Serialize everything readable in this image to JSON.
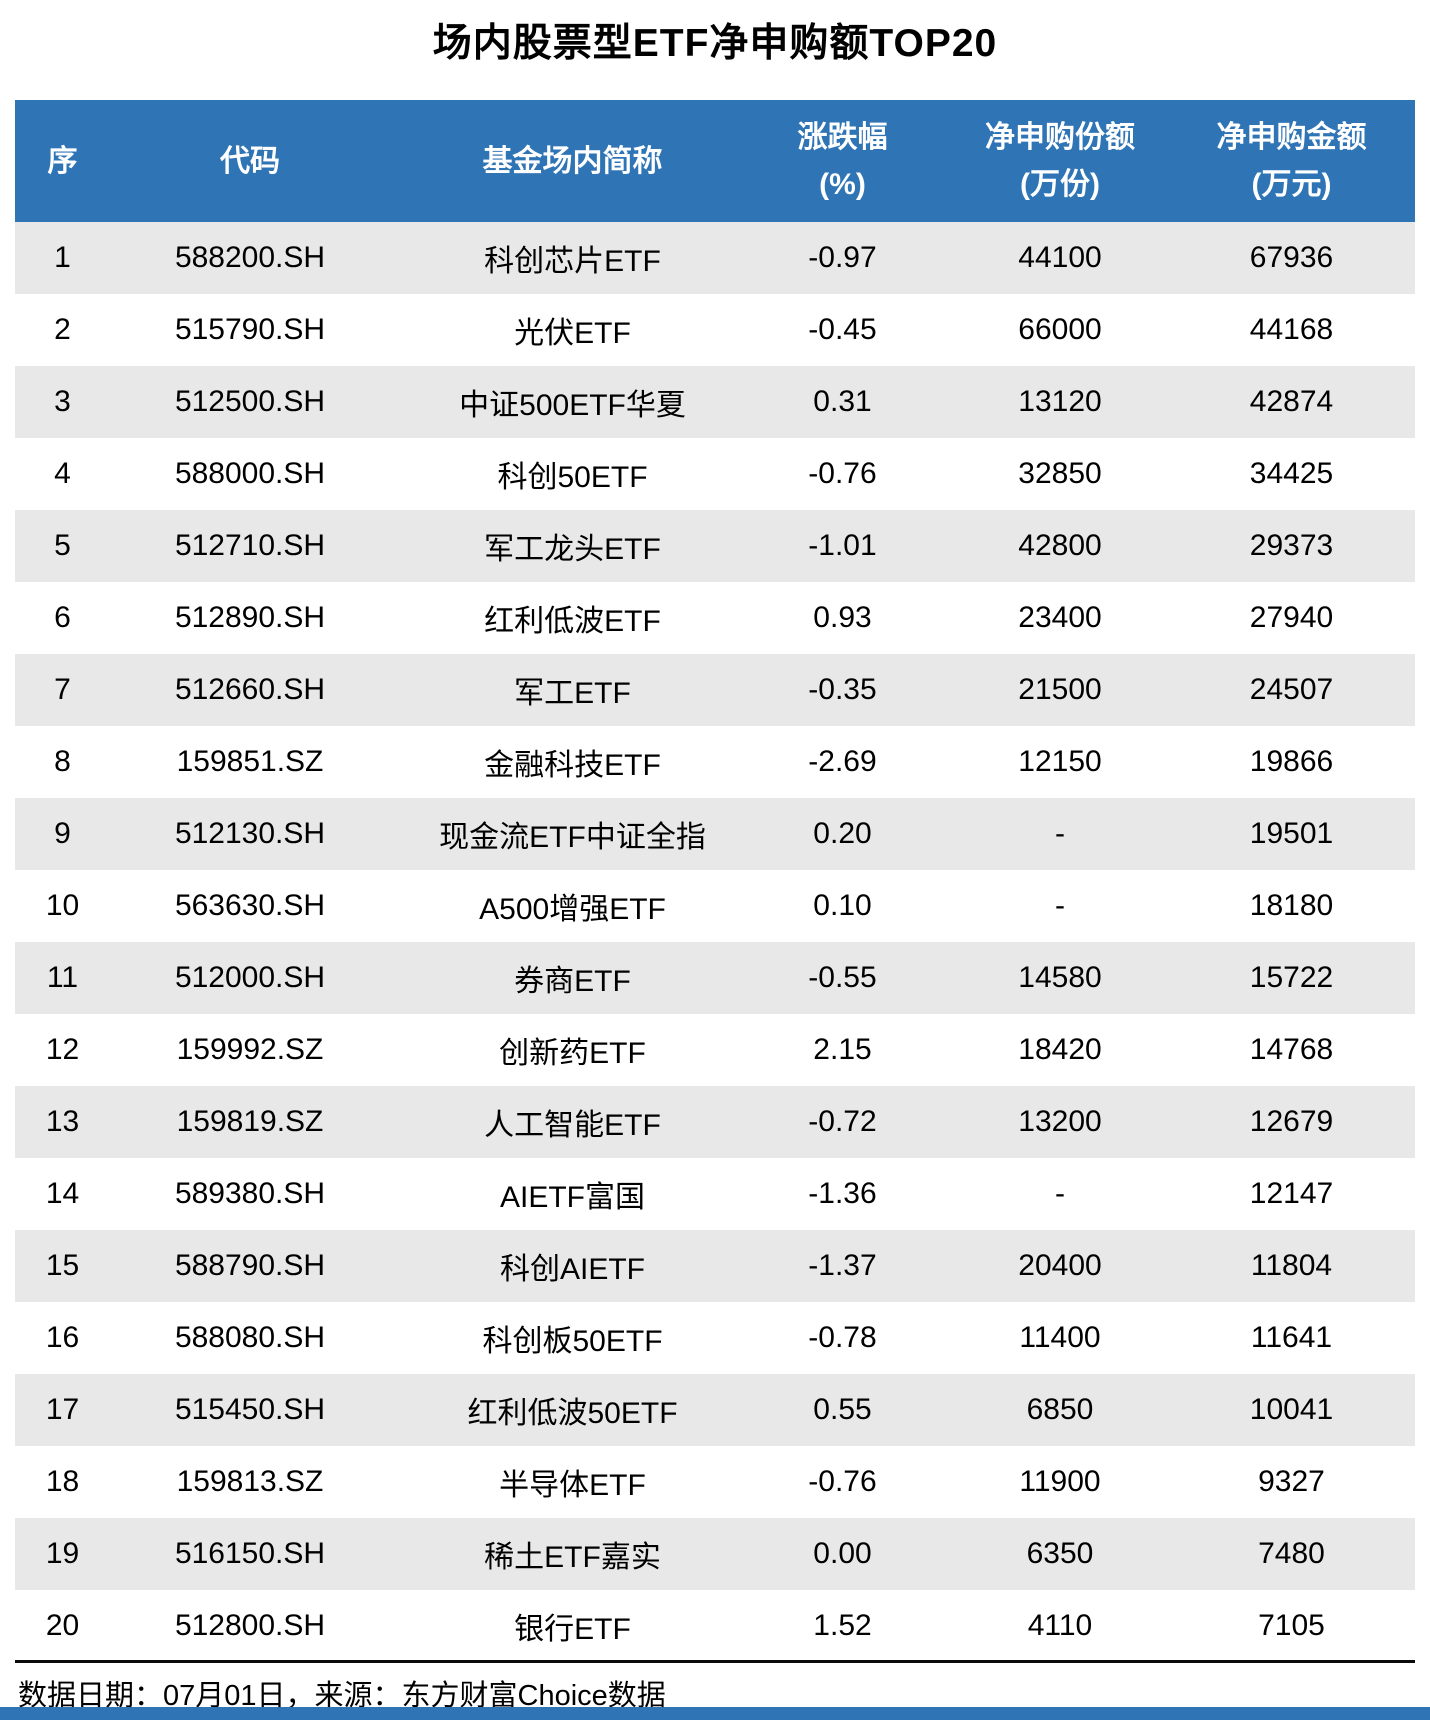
{
  "title": "场内股票型ETF净申购额TOP20",
  "table": {
    "headers": [
      {
        "label": "序",
        "sub": ""
      },
      {
        "label": "代码",
        "sub": ""
      },
      {
        "label": "基金场内简称",
        "sub": ""
      },
      {
        "label": "涨跌幅",
        "sub": "(%)"
      },
      {
        "label": "净申购份额",
        "sub": "(万份)"
      },
      {
        "label": "净申购金额",
        "sub": "(万元)"
      }
    ],
    "col_keys": [
      "rank",
      "code",
      "name",
      "change-pct",
      "net-sub-shares",
      "net-sub-amount"
    ],
    "rows": [
      [
        "1",
        "588200.SH",
        "科创芯片ETF",
        "-0.97",
        "44100",
        "67936"
      ],
      [
        "2",
        "515790.SH",
        "光伏ETF",
        "-0.45",
        "66000",
        "44168"
      ],
      [
        "3",
        "512500.SH",
        "中证500ETF华夏",
        "0.31",
        "13120",
        "42874"
      ],
      [
        "4",
        "588000.SH",
        "科创50ETF",
        "-0.76",
        "32850",
        "34425"
      ],
      [
        "5",
        "512710.SH",
        "军工龙头ETF",
        "-1.01",
        "42800",
        "29373"
      ],
      [
        "6",
        "512890.SH",
        "红利低波ETF",
        "0.93",
        "23400",
        "27940"
      ],
      [
        "7",
        "512660.SH",
        "军工ETF",
        "-0.35",
        "21500",
        "24507"
      ],
      [
        "8",
        "159851.SZ",
        "金融科技ETF",
        "-2.69",
        "12150",
        "19866"
      ],
      [
        "9",
        "512130.SH",
        "现金流ETF中证全指",
        "0.20",
        "-",
        "19501"
      ],
      [
        "10",
        "563630.SH",
        "A500增强ETF",
        "0.10",
        "-",
        "18180"
      ],
      [
        "11",
        "512000.SH",
        "券商ETF",
        "-0.55",
        "14580",
        "15722"
      ],
      [
        "12",
        "159992.SZ",
        "创新药ETF",
        "2.15",
        "18420",
        "14768"
      ],
      [
        "13",
        "159819.SZ",
        "人工智能ETF",
        "-0.72",
        "13200",
        "12679"
      ],
      [
        "14",
        "589380.SH",
        "AIETF富国",
        "-1.36",
        "-",
        "12147"
      ],
      [
        "15",
        "588790.SH",
        "科创AIETF",
        "-1.37",
        "20400",
        "11804"
      ],
      [
        "16",
        "588080.SH",
        "科创板50ETF",
        "-0.78",
        "11400",
        "11641"
      ],
      [
        "17",
        "515450.SH",
        "红利低波50ETF",
        "0.55",
        "6850",
        "10041"
      ],
      [
        "18",
        "159813.SZ",
        "半导体ETF",
        "-0.76",
        "11900",
        "9327"
      ],
      [
        "19",
        "516150.SH",
        "稀土ETF嘉实",
        "0.00",
        "6350",
        "7480"
      ],
      [
        "20",
        "512800.SH",
        "银行ETF",
        "1.52",
        "4110",
        "7105"
      ]
    ]
  },
  "footer": {
    "note": "数据日期：07月01日，来源：东方财富Choice数据"
  },
  "colors": {
    "header_bg": "#2F74B5",
    "row_alt_bg": "#E8E8E8",
    "row_bg": "#FFFFFF",
    "rule": "#0A0A0A",
    "bottom_bar": "#2F74B5",
    "header_text": "#FFFFFF",
    "body_text": "#000000"
  },
  "chart_data": {
    "type": "table",
    "title": "场内股票型ETF净申购额TOP20",
    "columns": [
      "序",
      "代码",
      "基金场内简称",
      "涨跌幅(%)",
      "净申购份额(万份)",
      "净申购金额(万元)"
    ],
    "rows": [
      [
        1,
        "588200.SH",
        "科创芯片ETF",
        -0.97,
        44100,
        67936
      ],
      [
        2,
        "515790.SH",
        "光伏ETF",
        -0.45,
        66000,
        44168
      ],
      [
        3,
        "512500.SH",
        "中证500ETF华夏",
        0.31,
        13120,
        42874
      ],
      [
        4,
        "588000.SH",
        "科创50ETF",
        -0.76,
        32850,
        34425
      ],
      [
        5,
        "512710.SH",
        "军工龙头ETF",
        -1.01,
        42800,
        29373
      ],
      [
        6,
        "512890.SH",
        "红利低波ETF",
        0.93,
        23400,
        27940
      ],
      [
        7,
        "512660.SH",
        "军工ETF",
        -0.35,
        21500,
        24507
      ],
      [
        8,
        "159851.SZ",
        "金融科技ETF",
        -2.69,
        12150,
        19866
      ],
      [
        9,
        "512130.SH",
        "现金流ETF中证全指",
        0.2,
        null,
        19501
      ],
      [
        10,
        "563630.SH",
        "A500增强ETF",
        0.1,
        null,
        18180
      ],
      [
        11,
        "512000.SH",
        "券商ETF",
        -0.55,
        14580,
        15722
      ],
      [
        12,
        "159992.SZ",
        "创新药ETF",
        2.15,
        18420,
        14768
      ],
      [
        13,
        "159819.SZ",
        "人工智能ETF",
        -0.72,
        13200,
        12679
      ],
      [
        14,
        "589380.SH",
        "AIETF富国",
        -1.36,
        null,
        12147
      ],
      [
        15,
        "588790.SH",
        "科创AIETF",
        -1.37,
        20400,
        11804
      ],
      [
        16,
        "588080.SH",
        "科创板50ETF",
        -0.78,
        11400,
        11641
      ],
      [
        17,
        "515450.SH",
        "红利低波50ETF",
        0.55,
        6850,
        10041
      ],
      [
        18,
        "159813.SZ",
        "半导体ETF",
        -0.76,
        11900,
        9327
      ],
      [
        19,
        "516150.SH",
        "稀土ETF嘉实",
        0.0,
        6350,
        7480
      ],
      [
        20,
        "512800.SH",
        "银行ETF",
        1.52,
        4110,
        7105
      ]
    ],
    "missing_value_marker": "-",
    "source_note": "数据日期：07月01日，来源：东方财富Choice数据"
  }
}
